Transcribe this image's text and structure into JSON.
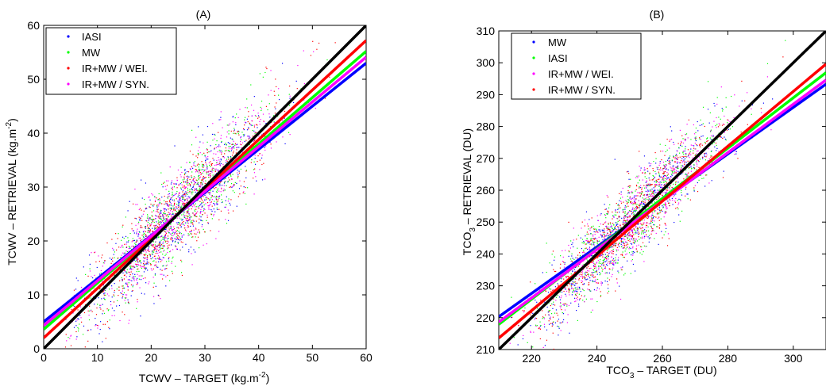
{
  "chart_data": [
    {
      "type": "scatter",
      "title": "(A)",
      "xlabel": "TCWV – TARGET (kg.m",
      "xlabel_sup": "-2",
      "xlabel_end": ")",
      "ylabel": "TCWV – RETRIEVAL (kg.m",
      "ylabel_sup": "-2",
      "ylabel_end": ")",
      "xlim": [
        0,
        60
      ],
      "ylim": [
        0,
        60
      ],
      "xticks": [
        0,
        10,
        20,
        30,
        40,
        50,
        60
      ],
      "yticks": [
        0,
        10,
        20,
        30,
        40,
        50,
        60
      ],
      "cloud": {
        "xmin": 4,
        "xmax": 55,
        "center": 25,
        "spread": 9,
        "noise": 4.2
      },
      "series": [
        {
          "name": "IASI",
          "color": "#0000ff",
          "fit": {
            "slope": 0.8,
            "intercept": 5
          }
        },
        {
          "name": "MW",
          "color": "#00ff00",
          "fit": {
            "slope": 0.86,
            "intercept": 3.6
          }
        },
        {
          "name": "IR+MW / WEI.",
          "color": "#ff0000",
          "fit": {
            "slope": 0.92,
            "intercept": 2
          }
        },
        {
          "name": "IR+MW / SYN.",
          "color": "#ff00ff",
          "fit": {
            "slope": 0.83,
            "intercept": 4.3
          }
        }
      ],
      "identity_line": {
        "color": "#000000"
      }
    },
    {
      "type": "scatter",
      "title": "(B)",
      "xlabel": "TCO",
      "xlabel_sub": "3",
      "xlabel_end": " – TARGET (DU)",
      "ylabel": "TCO",
      "ylabel_sub": "3",
      "ylabel_end": " – RETRIEVAL (DU)",
      "xlim": [
        210,
        310
      ],
      "ylim": [
        210,
        310
      ],
      "xticks": [
        220,
        240,
        260,
        280,
        300
      ],
      "yticks": [
        210,
        220,
        230,
        240,
        250,
        260,
        270,
        280,
        290,
        300,
        310
      ],
      "cloud": {
        "xmin": 212,
        "xmax": 302,
        "center": 250,
        "spread": 14,
        "noise": 6
      },
      "series": [
        {
          "name": "MW",
          "color": "#0000ff",
          "fit": {
            "slope": 0.73,
            "intercept": 67
          }
        },
        {
          "name": "IASI",
          "color": "#00ff00",
          "fit": {
            "slope": 0.79,
            "intercept": 52
          }
        },
        {
          "name": "IR+MW / WEI.",
          "color": "#ff00ff",
          "fit": {
            "slope": 0.76,
            "intercept": 59
          }
        },
        {
          "name": "IR+MW / SYN.",
          "color": "#ff0000",
          "fit": {
            "slope": 0.86,
            "intercept": 33
          }
        }
      ],
      "identity_line": {
        "color": "#000000"
      }
    }
  ]
}
